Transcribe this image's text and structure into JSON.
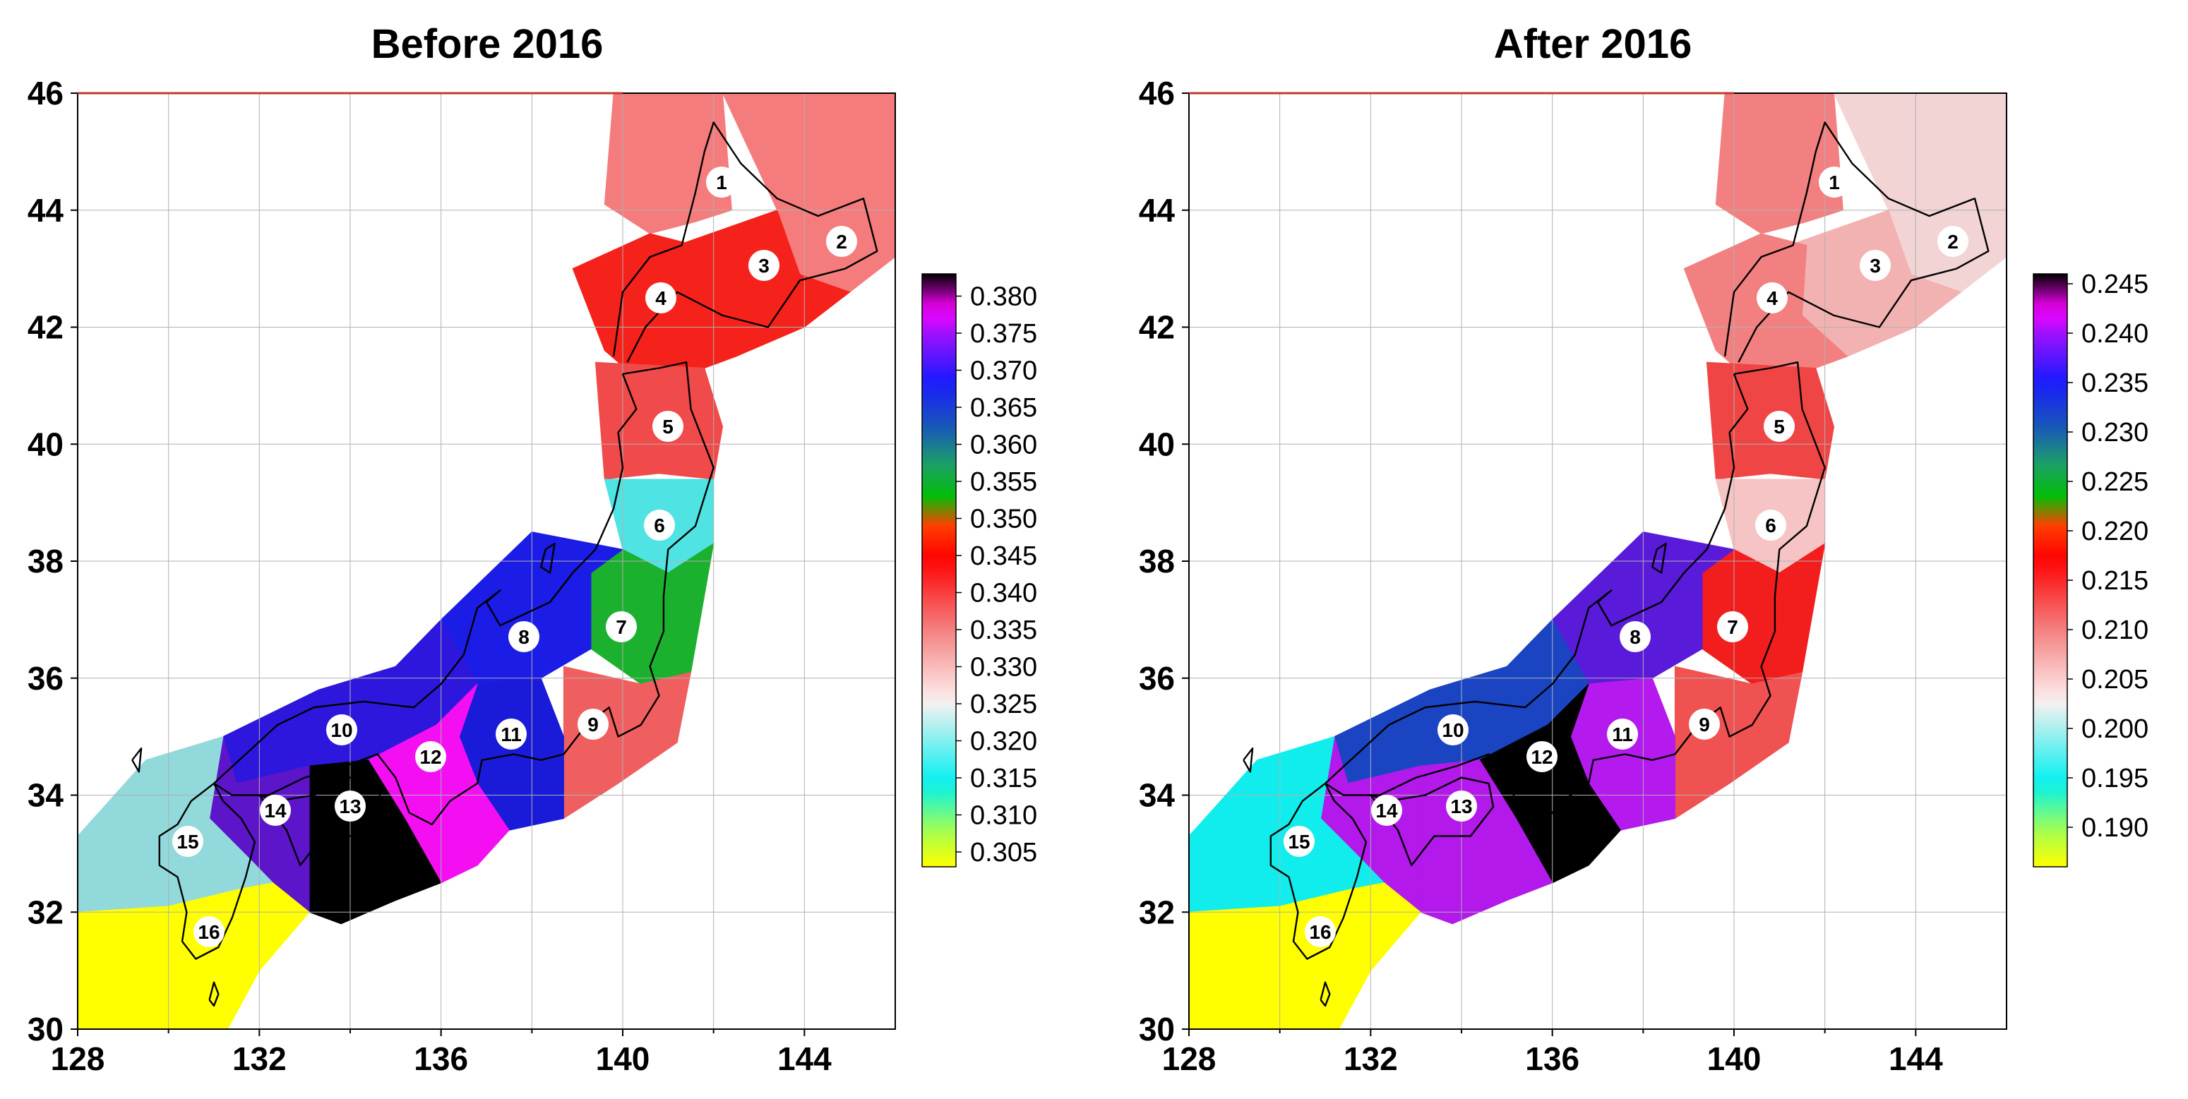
{
  "chart_data": [
    {
      "type": "heatmap",
      "title": "Before 2016",
      "x_ticks": [
        "128",
        "132",
        "136",
        "140",
        "144"
      ],
      "y_ticks": [
        "30",
        "32",
        "34",
        "36",
        "38",
        "40",
        "42",
        "44",
        "46"
      ],
      "xlim": [
        128,
        146
      ],
      "ylim": [
        30,
        46
      ],
      "grid": true,
      "colorbar": {
        "min": 0.303,
        "max": 0.383,
        "labels": [
          "0.380",
          "0.375",
          "0.370",
          "0.365",
          "0.360",
          "0.355",
          "0.350",
          "0.345",
          "0.340",
          "0.335",
          "0.330",
          "0.325",
          "0.320",
          "0.315",
          "0.310",
          "0.305"
        ]
      },
      "regions": [
        {
          "id": "1",
          "fill": "#f47c7c"
        },
        {
          "id": "2",
          "fill": "#f47c7c"
        },
        {
          "id": "3",
          "fill": "#f5221b"
        },
        {
          "id": "4",
          "fill": "#f5221b"
        },
        {
          "id": "5",
          "fill": "#f04a4a"
        },
        {
          "id": "6",
          "fill": "#4fe3e3"
        },
        {
          "id": "7",
          "fill": "#1cb02f"
        },
        {
          "id": "8",
          "fill": "#1b1ce6"
        },
        {
          "id": "9",
          "fill": "#f05f5f"
        },
        {
          "id": "10",
          "fill": "#2d17dd"
        },
        {
          "id": "11",
          "fill": "#1a1bd8"
        },
        {
          "id": "12",
          "fill": "#f40ff2"
        },
        {
          "id": "13",
          "fill": "#000000"
        },
        {
          "id": "14",
          "fill": "#5c15c9"
        },
        {
          "id": "15",
          "fill": "#92d9dc"
        },
        {
          "id": "16",
          "fill": "#ffff00"
        }
      ]
    },
    {
      "type": "heatmap",
      "title": "After 2016",
      "x_ticks": [
        "128",
        "132",
        "136",
        "140",
        "144"
      ],
      "y_ticks": [
        "30",
        "32",
        "34",
        "36",
        "38",
        "40",
        "42",
        "44",
        "46"
      ],
      "xlim": [
        128,
        146
      ],
      "ylim": [
        30,
        46
      ],
      "grid": true,
      "colorbar": {
        "min": 0.186,
        "max": 0.246,
        "labels": [
          "0.245",
          "0.240",
          "0.235",
          "0.230",
          "0.225",
          "0.220",
          "0.215",
          "0.210",
          "0.205",
          "0.200",
          "0.195",
          "0.190"
        ]
      },
      "regions": [
        {
          "id": "1",
          "fill": "#f28080"
        },
        {
          "id": "2",
          "fill": "#f2d4d4"
        },
        {
          "id": "3",
          "fill": "#f3b2b2"
        },
        {
          "id": "4",
          "fill": "#f28080"
        },
        {
          "id": "5",
          "fill": "#f04545"
        },
        {
          "id": "6",
          "fill": "#f6c4c4"
        },
        {
          "id": "7",
          "fill": "#f21e1e"
        },
        {
          "id": "8",
          "fill": "#5a1ad9"
        },
        {
          "id": "9",
          "fill": "#f05252"
        },
        {
          "id": "10",
          "fill": "#1a44c2"
        },
        {
          "id": "11",
          "fill": "#b419ee"
        },
        {
          "id": "12",
          "fill": "#000000"
        },
        {
          "id": "13",
          "fill": "#b219ea"
        },
        {
          "id": "14",
          "fill": "#b219ea"
        },
        {
          "id": "15",
          "fill": "#11eded"
        },
        {
          "id": "16",
          "fill": "#ffff00"
        }
      ]
    }
  ]
}
